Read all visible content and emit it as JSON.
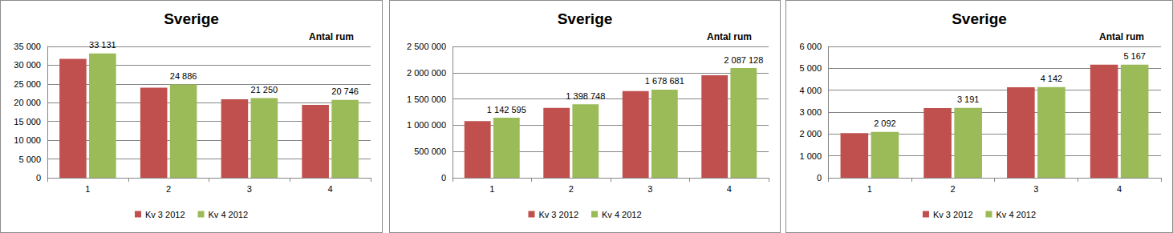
{
  "chart_data": [
    {
      "type": "bar",
      "title": "Sverige",
      "annotation": "Antal rum",
      "categories": [
        "1",
        "2",
        "3",
        "4"
      ],
      "series": [
        {
          "name": "Kv 3 2012",
          "color": "#c0504d",
          "values": [
            31700,
            24000,
            20900,
            19400
          ]
        },
        {
          "name": "Kv 4 2012",
          "color": "#9bbb59",
          "values": [
            33131,
            24886,
            21250,
            20746
          ],
          "data_labels": true,
          "value_labels": [
            "33 131",
            "24 886",
            "21 250",
            "20 746"
          ]
        }
      ],
      "ylim": [
        0,
        35000
      ],
      "yticks": [
        0,
        {
          "value": 5000,
          "label": "5 000"
        },
        {
          "value": 10000,
          "label": "10 000"
        },
        {
          "value": 15000,
          "label": "15 000"
        },
        {
          "value": 20000,
          "label": "20 000"
        },
        {
          "value": 25000,
          "label": "25 000"
        },
        {
          "value": 30000,
          "label": "30 000"
        },
        {
          "value": 35000,
          "label": "35 000"
        }
      ],
      "grid": true,
      "legend": "bottom"
    },
    {
      "type": "bar",
      "title": "Sverige",
      "annotation": "Antal rum",
      "categories": [
        "1",
        "2",
        "3",
        "4"
      ],
      "series": [
        {
          "name": "Kv 3 2012",
          "color": "#c0504d",
          "values": [
            1080000,
            1330000,
            1650000,
            1950000
          ]
        },
        {
          "name": "Kv 4 2012",
          "color": "#9bbb59",
          "values": [
            1142595,
            1398748,
            1678681,
            2087128
          ],
          "data_labels": true,
          "value_labels": [
            "1 142 595",
            "1 398 748",
            "1 678 681",
            "2 087 128"
          ]
        }
      ],
      "ylim": [
        0,
        2500000
      ],
      "yticks": [
        0,
        {
          "value": 500000,
          "label": "500 000"
        },
        {
          "value": 1000000,
          "label": "1 000 000"
        },
        {
          "value": 1500000,
          "label": "1 500 000"
        },
        {
          "value": 2000000,
          "label": "2 000 000"
        },
        {
          "value": 2500000,
          "label": "2 500 000"
        }
      ],
      "grid": true,
      "legend": "bottom"
    },
    {
      "type": "bar",
      "title": "Sverige",
      "annotation": "Antal rum",
      "categories": [
        "1",
        "2",
        "3",
        "4"
      ],
      "series": [
        {
          "name": "Kv 3 2012",
          "color": "#c0504d",
          "values": [
            2040,
            3180,
            4130,
            5170
          ]
        },
        {
          "name": "Kv 4 2012",
          "color": "#9bbb59",
          "values": [
            2092,
            3191,
            4142,
            5167
          ],
          "data_labels": true,
          "value_labels": [
            "2 092",
            "3 191",
            "4 142",
            "5 167"
          ]
        }
      ],
      "ylim": [
        0,
        6000
      ],
      "yticks": [
        0,
        {
          "value": 1000,
          "label": "1 000"
        },
        {
          "value": 2000,
          "label": "2 000"
        },
        {
          "value": 3000,
          "label": "3 000"
        },
        {
          "value": 4000,
          "label": "4 000"
        },
        {
          "value": 5000,
          "label": "5 000"
        },
        {
          "value": 6000,
          "label": "6 000"
        }
      ],
      "grid": true,
      "legend": "bottom"
    }
  ]
}
